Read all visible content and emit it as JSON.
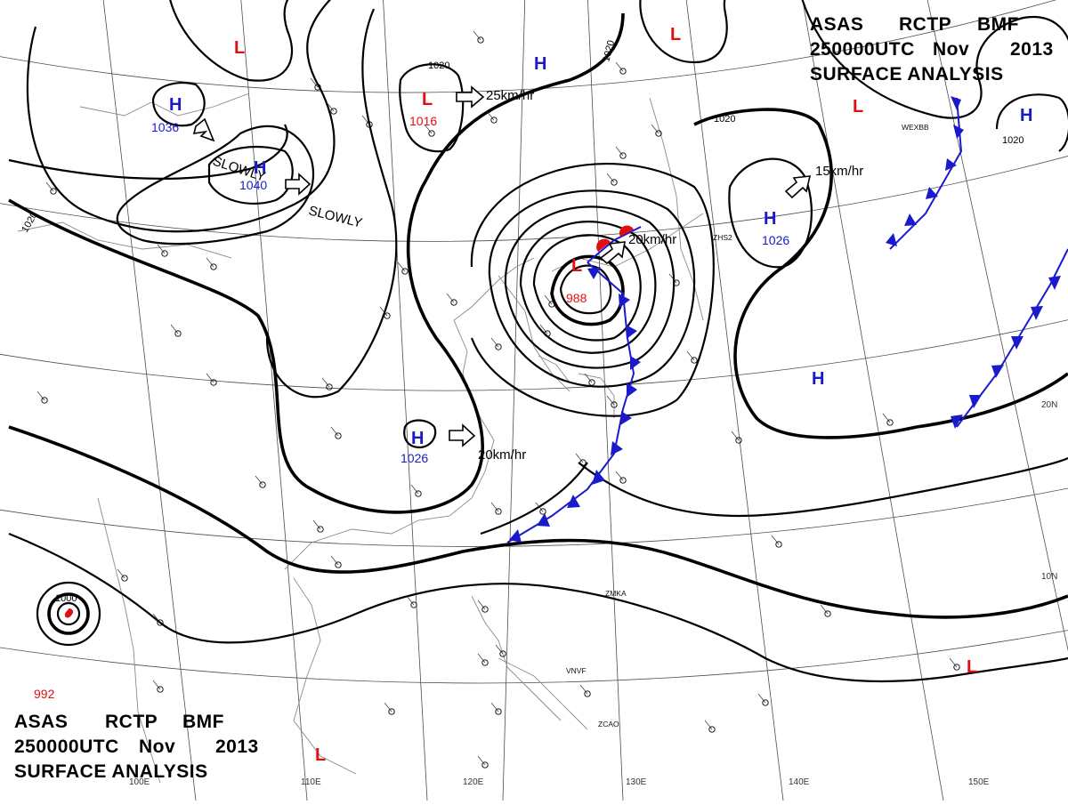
{
  "header_top": {
    "line1": [
      "ASAS",
      "RCTP",
      "BMF"
    ],
    "line2": [
      "250000UTC",
      "Nov",
      "2013"
    ],
    "line3": "SURFACE  ANALYSIS"
  },
  "header_bottom": {
    "line1": [
      "ASAS",
      "RCTP",
      "BMF"
    ],
    "line2": [
      "250000UTC",
      "Nov",
      "2013"
    ],
    "line3": "SURFACE  ANALYSIS"
  },
  "colors": {
    "high": "#1a1acc",
    "low": "#e01010",
    "isobar": "#000000",
    "grid": "#4d4d4d"
  },
  "pressure_centers": [
    {
      "type": "H",
      "value": "1036"
    },
    {
      "type": "H",
      "value": "1040"
    },
    {
      "type": "H",
      "value": "1026"
    },
    {
      "type": "H",
      "value": "1026"
    },
    {
      "type": "H",
      "value": ""
    },
    {
      "type": "H",
      "value": ""
    },
    {
      "type": "H",
      "value": ""
    },
    {
      "type": "L",
      "value": "1016"
    },
    {
      "type": "L",
      "value": "988"
    },
    {
      "type": "L",
      "value": ""
    },
    {
      "type": "L",
      "value": ""
    },
    {
      "type": "L",
      "value": ""
    },
    {
      "type": "L",
      "value": ""
    },
    {
      "type": "L",
      "value": ""
    }
  ],
  "motion_labels": [
    "25km/hr",
    "SLOWLY",
    "SLOWLY",
    "15km/hr",
    "20km/hr",
    "20km/hr"
  ],
  "isobar_labels": [
    "1020",
    "1020",
    "1020",
    "1020",
    "1020",
    "1000"
  ],
  "grid_labels": {
    "longitudes": [
      "110E",
      "120E",
      "130E",
      "140E",
      "150E",
      "100E"
    ],
    "latitudes": [
      "20N",
      "10N"
    ]
  },
  "typhoon": {
    "value": "992"
  },
  "stations": [
    "ZMKA",
    "VNVF",
    "ZCAO",
    "ZHS2",
    "WEXBB"
  ]
}
